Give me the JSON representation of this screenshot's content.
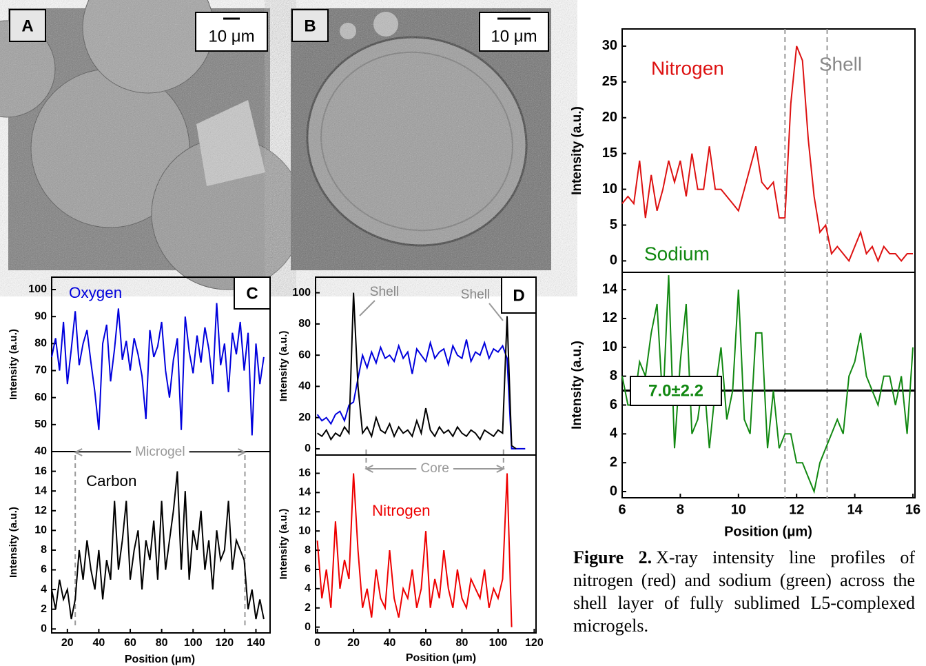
{
  "images": [
    {
      "label": "A",
      "scale_bar": "10 μm"
    },
    {
      "label": "B",
      "scale_bar": "10 μm"
    }
  ],
  "chart_data": [
    {
      "type": "line",
      "panel": "C",
      "ylabel": "Intensity (a.u.)",
      "x": [
        10,
        12.5,
        15,
        17.5,
        20,
        22.5,
        25,
        27.5,
        30,
        32.5,
        35,
        37.5,
        40,
        42.5,
        45,
        47.5,
        50,
        52.5,
        55,
        57.5,
        60,
        62.5,
        65,
        67.5,
        70,
        72.5,
        75,
        77.5,
        80,
        82.5,
        85,
        87.5,
        90,
        92.5,
        95,
        97.5,
        100,
        102.5,
        105,
        107.5,
        110,
        112.5,
        115,
        117.5,
        120,
        122.5,
        125,
        127.5,
        130,
        132.5,
        135,
        137.5,
        140,
        142.5,
        145
      ],
      "xlim": [
        10,
        149
      ],
      "ylim": [
        40,
        104.6
      ],
      "yticks": [
        40,
        50,
        60,
        70,
        80,
        90,
        100
      ],
      "series": [
        {
          "name": "Oxygen",
          "color": "#0000dd",
          "values": [
            75,
            82,
            70,
            88,
            65,
            78,
            92,
            72,
            80,
            85,
            73,
            62,
            48,
            80,
            87,
            66,
            78,
            93,
            74,
            81,
            70,
            82,
            76,
            68,
            52,
            85,
            75,
            79,
            88,
            70,
            60,
            74,
            82,
            48,
            90,
            77,
            69,
            83,
            73,
            86,
            78,
            65,
            95,
            72,
            80,
            62,
            84,
            76,
            88,
            70,
            84,
            46,
            80,
            65,
            75
          ]
        }
      ]
    },
    {
      "type": "line",
      "ylabel": "Intensity (a.u.)",
      "xlabel": "Position (μm)",
      "x": [
        10,
        12.5,
        15,
        17.5,
        20,
        22.5,
        25,
        27.5,
        30,
        32.5,
        35,
        37.5,
        40,
        42.5,
        45,
        47.5,
        50,
        52.5,
        55,
        57.5,
        60,
        62.5,
        65,
        67.5,
        70,
        72.5,
        75,
        77.5,
        80,
        82.5,
        85,
        87.5,
        90,
        92.5,
        95,
        97.5,
        100,
        102.5,
        105,
        107.5,
        110,
        112.5,
        115,
        117.5,
        120,
        122.5,
        125,
        127.5,
        130,
        132.5,
        135,
        137.5,
        140,
        142.5,
        145
      ],
      "xlim": [
        10,
        149
      ],
      "ylim": [
        -0.4,
        18
      ],
      "yticks": [
        0,
        2,
        4,
        6,
        8,
        10,
        12,
        14,
        16
      ],
      "xticks": [
        20,
        40,
        60,
        80,
        100,
        120,
        140
      ],
      "series": [
        {
          "name": "Carbon",
          "color": "#000000",
          "values": [
            4,
            2,
            5,
            3,
            4,
            1,
            3,
            8,
            5,
            9,
            6,
            4,
            8,
            3,
            7,
            5,
            13,
            6,
            9,
            13,
            5,
            8,
            10,
            4,
            9,
            7,
            11,
            5,
            13,
            6,
            9,
            12,
            16,
            6,
            14,
            5,
            10,
            8,
            12,
            6,
            9,
            4,
            10,
            7,
            8,
            13,
            6,
            9,
            8,
            7,
            2,
            4,
            1,
            3,
            1
          ]
        }
      ],
      "span": {
        "label": "Microgel",
        "from": 25,
        "to": 133
      },
      "vlines": [
        25,
        133
      ]
    },
    {
      "type": "line",
      "panel": "D",
      "ylabel": "Intensity (a.u.)",
      "x": [
        0,
        2.5,
        5,
        7.5,
        10,
        12.5,
        15,
        17.5,
        20,
        22.5,
        25,
        27.5,
        30,
        32.5,
        35,
        37.5,
        40,
        42.5,
        45,
        47.5,
        50,
        52.5,
        55,
        57.5,
        60,
        62.5,
        65,
        67.5,
        70,
        72.5,
        75,
        77.5,
        80,
        82.5,
        85,
        87.5,
        90,
        92.5,
        95,
        97.5,
        100,
        102.5,
        105,
        107.5,
        110,
        112.5,
        115
      ],
      "xlim": [
        -1,
        121
      ],
      "ylim": [
        -4,
        110
      ],
      "yticks": [
        0,
        20,
        40,
        60,
        80,
        100
      ],
      "series": [
        {
          "color": "#0000dd",
          "values": [
            22,
            18,
            20,
            16,
            22,
            24,
            18,
            28,
            30,
            45,
            60,
            52,
            62,
            55,
            65,
            58,
            60,
            56,
            66,
            58,
            62,
            48,
            64,
            60,
            56,
            68,
            58,
            62,
            64,
            54,
            66,
            60,
            58,
            70,
            56,
            62,
            60,
            68,
            58,
            64,
            62,
            66,
            58,
            0,
            0,
            0,
            0
          ]
        },
        {
          "color": "#000000",
          "values": [
            10,
            8,
            12,
            6,
            10,
            8,
            14,
            10,
            100,
            40,
            10,
            14,
            8,
            20,
            12,
            10,
            16,
            8,
            14,
            10,
            12,
            8,
            18,
            10,
            26,
            12,
            8,
            14,
            10,
            12,
            8,
            14,
            10,
            8,
            12,
            10,
            6,
            12,
            10,
            8,
            12,
            10,
            85,
            2,
            0,
            null,
            null
          ]
        }
      ],
      "notes": [
        "Shell",
        "Shell"
      ]
    },
    {
      "type": "line",
      "ylabel": "Intensity (a.u.)",
      "xlabel": "Position (μm)",
      "x": [
        0,
        2.5,
        5,
        7.5,
        10,
        12.5,
        15,
        17.5,
        20,
        22.5,
        25,
        27.5,
        30,
        32.5,
        35,
        37.5,
        40,
        42.5,
        45,
        47.5,
        50,
        52.5,
        55,
        57.5,
        60,
        62.5,
        65,
        67.5,
        70,
        72.5,
        75,
        77.5,
        80,
        82.5,
        85,
        87.5,
        90,
        92.5,
        95,
        97.5,
        100,
        102.5,
        105,
        107.5,
        110,
        112.5,
        115,
        117.5,
        120
      ],
      "xlim": [
        -1,
        121
      ],
      "ylim": [
        -0.6,
        17.9
      ],
      "yticks": [
        0,
        2,
        4,
        6,
        8,
        10,
        12,
        14,
        16
      ],
      "xticks": [
        0,
        20,
        40,
        60,
        80,
        100,
        120
      ],
      "series": [
        {
          "name": "Nitrogen",
          "color": "#ee0000",
          "values": [
            9,
            3,
            6,
            2,
            11,
            4,
            7,
            5,
            16,
            8,
            2,
            4,
            1,
            6,
            3,
            2,
            8,
            3,
            1,
            4,
            3,
            6,
            2,
            4,
            10,
            2,
            5,
            3,
            8,
            4,
            2,
            6,
            3,
            2,
            5,
            4,
            3,
            6,
            2,
            4,
            3,
            5,
            16,
            0,
            null,
            null,
            null,
            null,
            null
          ]
        }
      ],
      "span": {
        "label": "Core",
        "from": 27,
        "to": 103
      },
      "vlines": [
        27,
        103
      ]
    },
    {
      "type": "line",
      "ylabel": "Intensity (a.u.)",
      "x": [
        6.0,
        6.2,
        6.4,
        6.6,
        6.8,
        7.0,
        7.2,
        7.4,
        7.6,
        7.8,
        8.0,
        8.2,
        8.4,
        8.6,
        8.8,
        9.0,
        9.2,
        9.4,
        9.6,
        9.8,
        10.0,
        10.2,
        10.4,
        10.6,
        10.8,
        11.0,
        11.2,
        11.4,
        11.6,
        11.8,
        12.0,
        12.2,
        12.4,
        12.6,
        12.8,
        13.0,
        13.2,
        13.4,
        13.6,
        13.8,
        14.0,
        14.2,
        14.4,
        14.6,
        14.8,
        15.0,
        15.2,
        15.4,
        15.6,
        15.8,
        16.0
      ],
      "xlim": [
        6,
        16.07
      ],
      "ylim": [
        -1.6,
        32.4
      ],
      "yticks": [
        0,
        5,
        10,
        15,
        20,
        25,
        30
      ],
      "series": [
        {
          "name": "Nitrogen",
          "color": "#dd1111",
          "values": [
            8,
            9,
            8,
            14,
            6,
            12,
            7,
            10,
            14,
            11,
            14,
            9,
            15,
            10,
            10,
            16,
            10,
            10,
            9,
            8,
            7,
            10,
            13,
            16,
            11,
            10,
            11,
            6,
            6,
            22,
            30,
            28,
            17,
            9,
            4,
            5,
            1,
            2,
            1,
            0,
            2,
            4,
            1,
            2,
            0,
            2,
            1,
            1,
            0,
            1,
            1
          ]
        }
      ],
      "vlines": [
        11.6,
        13.05
      ],
      "notes": [
        "Shell"
      ]
    },
    {
      "type": "line",
      "ylabel": "Intensity (a.u.)",
      "xlabel": "Position (μm)",
      "x": [
        6.0,
        6.2,
        6.4,
        6.6,
        6.8,
        7.0,
        7.2,
        7.4,
        7.6,
        7.8,
        8.0,
        8.2,
        8.4,
        8.6,
        8.8,
        9.0,
        9.2,
        9.4,
        9.6,
        9.8,
        10.0,
        10.2,
        10.4,
        10.6,
        10.8,
        11.0,
        11.2,
        11.4,
        11.6,
        11.8,
        12.0,
        12.2,
        12.4,
        12.6,
        12.8,
        13.0,
        13.2,
        13.4,
        13.6,
        13.8,
        14.0,
        14.2,
        14.4,
        14.6,
        14.8,
        15.0,
        15.2,
        15.4,
        15.6,
        15.8,
        16.0
      ],
      "xlim": [
        6,
        16.07
      ],
      "ylim": [
        -0.43,
        15.2
      ],
      "yticks": [
        0,
        2,
        4,
        6,
        8,
        10,
        12,
        14
      ],
      "xticks": [
        6,
        8,
        10,
        12,
        14,
        16
      ],
      "series": [
        {
          "name": "Sodium",
          "color": "#118811",
          "values": [
            8,
            6,
            6,
            9,
            8,
            11,
            13,
            6,
            15,
            3,
            9,
            13,
            4,
            5,
            8,
            3,
            7,
            10,
            5,
            7,
            14,
            5,
            4,
            11,
            11,
            3,
            7,
            3,
            4,
            4,
            2,
            2,
            1,
            0,
            2,
            3,
            4,
            5,
            4,
            8,
            9,
            11,
            8,
            7,
            6,
            8,
            8,
            6,
            8,
            4,
            10
          ]
        }
      ],
      "vlines": [
        11.6,
        13.05
      ],
      "hline": {
        "value": 7.0,
        "label": "7.0±2.2"
      }
    }
  ],
  "caption": {
    "label": "Figure 2.",
    "text": "X-ray intensity line profiles of nitrogen (red) and sodium (green) across the shell layer of fully sublimed L5-complexed microgels."
  }
}
